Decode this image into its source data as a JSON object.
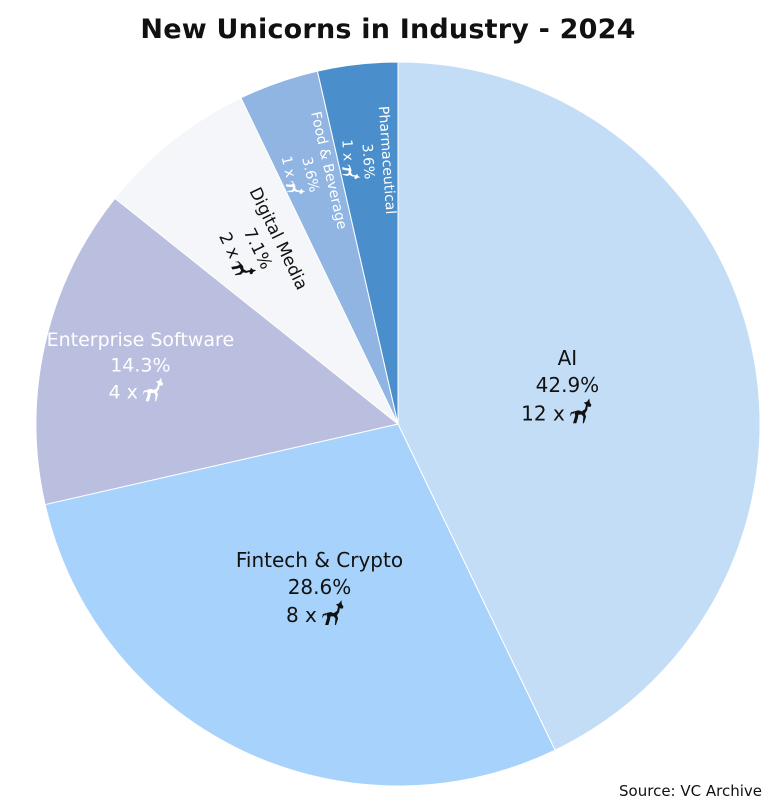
{
  "icon": "unicorn-icon",
  "chart_data": {
    "type": "pie",
    "title": "New Unicorns in Industry - 2024",
    "source": "Source: VC Archive",
    "count_prefix": "x",
    "slices": [
      {
        "label": "AI",
        "percent_label": "42.9%",
        "count": 12,
        "count_label": "12 x",
        "color": "#c3ddf7",
        "text_color": "#111111"
      },
      {
        "label": "Fintech & Crypto",
        "percent_label": "28.6%",
        "count": 8,
        "count_label": "8 x",
        "color": "#a7d2fb",
        "text_color": "#111111"
      },
      {
        "label": "Enterprise Software",
        "percent_label": "14.3%",
        "count": 4,
        "count_label": "4 x",
        "color": "#babedf",
        "text_color": "#ffffff"
      },
      {
        "label": "Digital Media",
        "percent_label": "7.1%",
        "count": 2,
        "count_label": "2 x",
        "color": "#f4f6f9",
        "text_color": "#111111"
      },
      {
        "label": "Food & Beverage",
        "percent_label": "3.6%",
        "count": 1,
        "count_label": "1 x",
        "color": "#90b5e3",
        "text_color": "#ffffff"
      },
      {
        "label": "Pharmaceutical",
        "percent_label": "3.6%",
        "count": 1,
        "count_label": "1 x",
        "color": "#4a8fcb",
        "text_color": "#ffffff"
      }
    ]
  }
}
